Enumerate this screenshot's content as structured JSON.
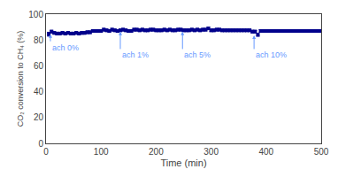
{
  "chart_data": {
    "type": "scatter",
    "xlabel": "Time (min)",
    "ylabel": "CO₂ conversion to CH₄ (%)",
    "xlim": [
      0,
      500
    ],
    "ylim": [
      0,
      100
    ],
    "xticks": [
      0,
      100,
      200,
      300,
      400,
      500
    ],
    "yticks": [
      0,
      20,
      40,
      60,
      80,
      100
    ],
    "grid": false,
    "color": "#00008B",
    "marker": "square",
    "x": [
      5,
      10,
      15,
      20,
      25,
      30,
      35,
      40,
      45,
      50,
      55,
      60,
      65,
      70,
      75,
      80,
      85,
      90,
      95,
      100,
      105,
      110,
      115,
      120,
      125,
      130,
      135,
      140,
      145,
      150,
      155,
      160,
      165,
      170,
      175,
      180,
      185,
      190,
      195,
      200,
      205,
      210,
      215,
      220,
      225,
      230,
      235,
      240,
      245,
      250,
      255,
      260,
      265,
      270,
      275,
      280,
      285,
      290,
      295,
      300,
      305,
      310,
      315,
      320,
      325,
      330,
      335,
      340,
      345,
      350,
      355,
      360,
      365,
      370,
      375,
      380,
      385,
      390,
      395,
      400,
      405,
      410,
      415,
      420,
      425,
      430,
      435,
      440,
      445,
      450,
      455,
      460,
      465,
      470,
      475,
      480,
      485,
      490,
      495,
      500
    ],
    "values": [
      84.5,
      86.5,
      85.5,
      85.0,
      85.0,
      85.5,
      85.0,
      85.5,
      85.0,
      85.0,
      85.5,
      85.0,
      85.5,
      85.5,
      86.0,
      86.0,
      87.0,
      87.0,
      87.0,
      87.0,
      88.0,
      87.5,
      87.0,
      88.0,
      87.5,
      87.0,
      87.5,
      88.0,
      87.5,
      87.0,
      87.0,
      88.0,
      88.0,
      87.5,
      88.0,
      87.5,
      87.5,
      88.0,
      88.0,
      87.5,
      87.5,
      87.5,
      88.0,
      87.5,
      88.0,
      87.5,
      87.5,
      88.0,
      88.0,
      87.5,
      87.5,
      87.5,
      88.0,
      87.5,
      88.0,
      87.5,
      88.0,
      88.0,
      89.0,
      87.5,
      87.5,
      88.0,
      88.0,
      87.5,
      87.5,
      87.5,
      87.5,
      87.5,
      87.5,
      87.5,
      87.5,
      87.5,
      87.5,
      87.5,
      86.5,
      86.5,
      84.0,
      87.0,
      87.0,
      87.0,
      87.0,
      87.0,
      87.0,
      87.0,
      87.0,
      87.0,
      87.0,
      87.0,
      87.0,
      87.0,
      87.0,
      87.0,
      87.0,
      87.0,
      87.0,
      87.0,
      87.0,
      87.0,
      87.0,
      87.0
    ],
    "y_err": [
      1.5,
      1.0,
      1.0,
      1.0,
      1.0,
      1.0,
      1.0,
      1.0,
      1.0,
      1.0,
      1.0,
      1.0,
      1.0,
      1.0,
      1.0,
      1.0,
      1.0,
      1.0,
      1.0,
      1.0,
      1.0,
      1.0,
      1.0,
      1.0,
      1.0,
      1.0,
      1.0,
      1.0,
      1.0,
      1.0,
      1.0,
      1.0,
      1.0,
      1.0,
      1.0,
      1.0,
      1.0,
      1.0,
      1.0,
      1.0,
      1.0,
      1.0,
      1.0,
      1.0,
      1.0,
      1.0,
      1.0,
      1.0,
      1.0,
      1.0,
      1.0,
      1.0,
      1.0,
      1.0,
      1.0,
      1.0,
      1.0,
      1.0,
      1.0,
      1.0,
      1.0,
      1.0,
      1.0,
      1.0,
      1.0,
      1.0,
      1.0,
      1.0,
      1.0,
      1.0,
      1.0,
      1.0,
      1.0,
      1.0,
      1.0,
      1.0,
      1.0,
      1.0,
      1.0,
      1.0,
      1.0,
      1.0,
      1.0,
      1.0,
      1.0,
      1.0,
      1.0,
      1.0,
      1.0,
      1.0,
      1.0,
      1.0,
      1.0,
      1.0,
      1.0,
      1.0,
      1.0,
      1.0,
      1.0,
      1.0
    ],
    "annotations": [
      {
        "text": "ach 0%",
        "x": 8,
        "text_y": 79,
        "arrow_y": 84.5,
        "color": "#6699FF"
      },
      {
        "text": "ach 1%",
        "x": 135,
        "text_y": 73,
        "arrow_y": 86.5,
        "color": "#6699FF"
      },
      {
        "text": "ach 5%",
        "x": 248,
        "text_y": 73,
        "arrow_y": 86.5,
        "color": "#6699FF"
      },
      {
        "text": "ach 10%",
        "x": 378,
        "text_y": 73,
        "arrow_y": 83.5,
        "color": "#6699FF"
      }
    ]
  }
}
